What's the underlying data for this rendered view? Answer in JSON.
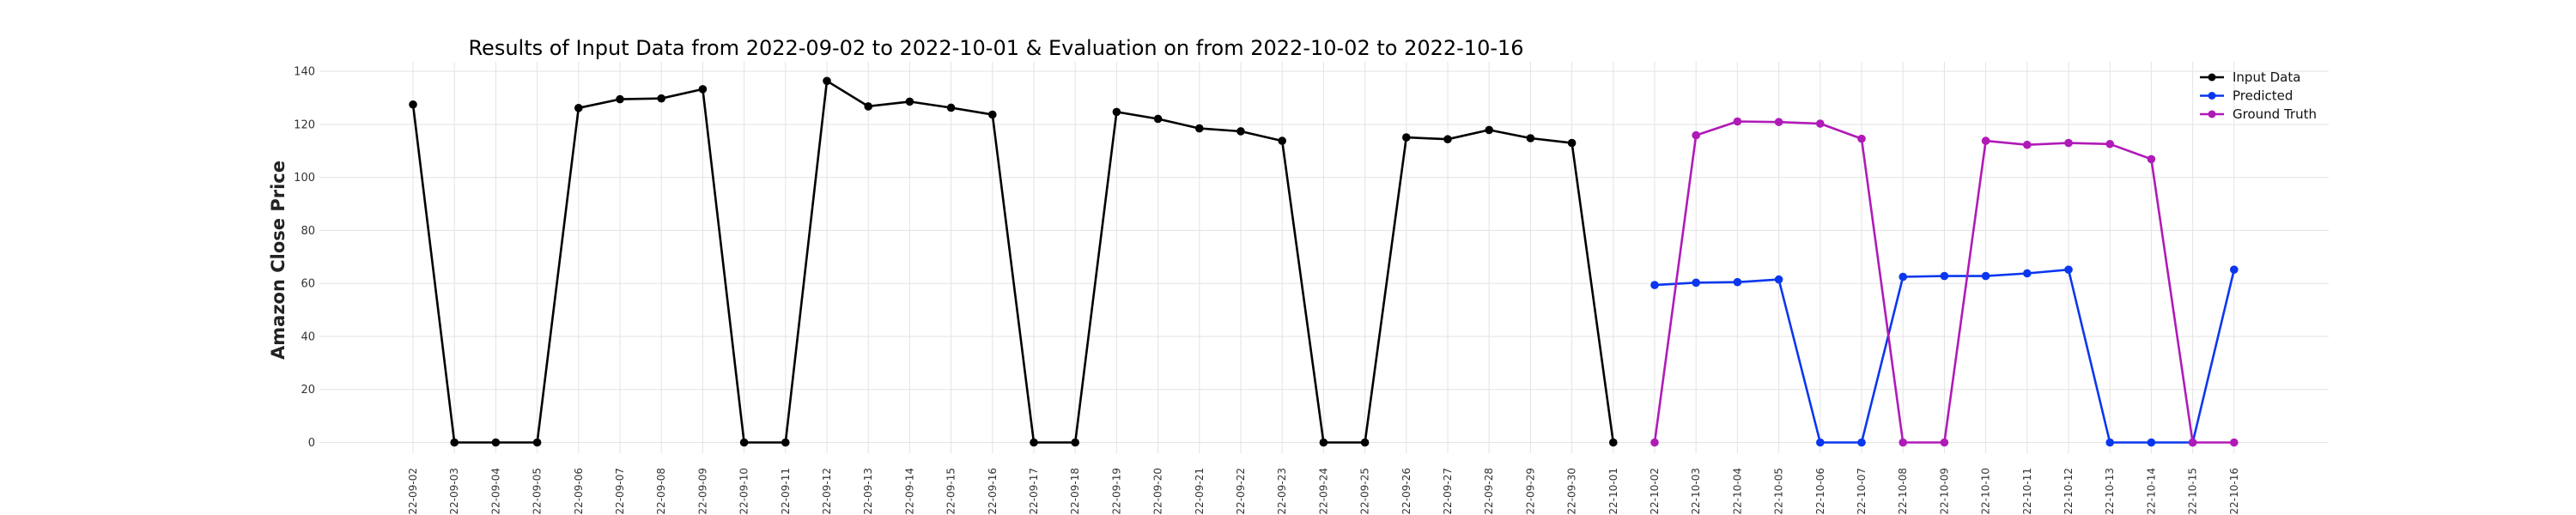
{
  "chart_data": {
    "type": "line",
    "title": "Results of Input Data from 2022-09-02 to 2022-10-01 & Evaluation on from 2022-10-02 to 2022-10-16",
    "xlabel": "",
    "ylabel": "Amazon Close Price",
    "ylim": [
      -5,
      145
    ],
    "yticks": [
      0,
      20,
      40,
      60,
      80,
      100,
      120,
      140
    ],
    "grid": true,
    "legend_position": "top-right",
    "categories": [
      "2022-09-02",
      "2022-09-03",
      "2022-09-04",
      "2022-09-05",
      "2022-09-06",
      "2022-09-07",
      "2022-09-08",
      "2022-09-09",
      "2022-09-10",
      "2022-09-11",
      "2022-09-12",
      "2022-09-13",
      "2022-09-14",
      "2022-09-15",
      "2022-09-16",
      "2022-09-17",
      "2022-09-18",
      "2022-09-19",
      "2022-09-20",
      "2022-09-21",
      "2022-09-22",
      "2022-09-23",
      "2022-09-24",
      "2022-09-25",
      "2022-09-26",
      "2022-09-27",
      "2022-09-28",
      "2022-09-29",
      "2022-09-30",
      "2022-10-01",
      "2022-10-02",
      "2022-10-03",
      "2022-10-04",
      "2022-10-05",
      "2022-10-06",
      "2022-10-07",
      "2022-10-08",
      "2022-10-09",
      "2022-10-10",
      "2022-10-11",
      "2022-10-12",
      "2022-10-13",
      "2022-10-14",
      "2022-10-15",
      "2022-10-16"
    ],
    "tick_labels": [
      "022-09-02",
      "022-09-03",
      "022-09-04",
      "022-09-05",
      "022-09-06",
      "022-09-07",
      "022-09-08",
      "022-09-09",
      "022-09-10",
      "022-09-11",
      "022-09-12",
      "022-09-13",
      "022-09-14",
      "022-09-15",
      "022-09-16",
      "022-09-17",
      "022-09-18",
      "022-09-19",
      "022-09-20",
      "022-09-21",
      "022-09-22",
      "022-09-23",
      "022-09-24",
      "022-09-25",
      "022-09-26",
      "022-09-27",
      "022-09-28",
      "022-09-29",
      "022-09-30",
      "022-10-01",
      "022-10-02",
      "022-10-03",
      "022-10-04",
      "022-10-05",
      "022-10-06",
      "022-10-07",
      "022-10-08",
      "022-10-09",
      "022-10-10",
      "022-10-11",
      "022-10-12",
      "022-10-13",
      "022-10-14",
      "022-10-15",
      "022-10-16"
    ],
    "series": [
      {
        "name": "Input Data",
        "color": "#000000",
        "x": [
          "2022-09-02",
          "2022-09-03",
          "2022-09-04",
          "2022-09-05",
          "2022-09-06",
          "2022-09-07",
          "2022-09-08",
          "2022-09-09",
          "2022-09-10",
          "2022-09-11",
          "2022-09-12",
          "2022-09-13",
          "2022-09-14",
          "2022-09-15",
          "2022-09-16",
          "2022-09-17",
          "2022-09-18",
          "2022-09-19",
          "2022-09-20",
          "2022-09-21",
          "2022-09-22",
          "2022-09-23",
          "2022-09-24",
          "2022-09-25",
          "2022-09-26",
          "2022-09-27",
          "2022-09-28",
          "2022-09-29",
          "2022-09-30",
          "2022-10-01"
        ],
        "values": [
          127.5,
          0,
          0,
          0,
          126.2,
          129.5,
          129.8,
          133.3,
          0,
          0,
          136.4,
          126.8,
          128.6,
          126.3,
          123.7,
          0,
          0,
          124.7,
          122.1,
          118.5,
          117.4,
          113.8,
          0,
          0,
          115.1,
          114.4,
          117.9,
          114.8,
          113.0,
          0
        ]
      },
      {
        "name": "Predicted",
        "color": "#0a37ee",
        "x": [
          "2022-10-02",
          "2022-10-03",
          "2022-10-04",
          "2022-10-05",
          "2022-10-06",
          "2022-10-07",
          "2022-10-08",
          "2022-10-09",
          "2022-10-10",
          "2022-10-11",
          "2022-10-12",
          "2022-10-13",
          "2022-10-14",
          "2022-10-15",
          "2022-10-16"
        ],
        "values": [
          59.4,
          60.3,
          60.5,
          61.5,
          0,
          0,
          62.5,
          62.8,
          62.8,
          63.8,
          65.2,
          0,
          0,
          0,
          65.2
        ]
      },
      {
        "name": "Ground Truth",
        "color": "#b01ab8",
        "x": [
          "2022-10-02",
          "2022-10-03",
          "2022-10-04",
          "2022-10-05",
          "2022-10-06",
          "2022-10-07",
          "2022-10-08",
          "2022-10-09",
          "2022-10-10",
          "2022-10-11",
          "2022-10-12",
          "2022-10-13",
          "2022-10-14",
          "2022-10-15",
          "2022-10-16"
        ],
        "values": [
          0,
          115.9,
          121.1,
          120.9,
          120.3,
          114.6,
          0,
          0,
          113.8,
          112.3,
          113.0,
          112.6,
          106.9,
          0,
          0
        ]
      }
    ]
  }
}
